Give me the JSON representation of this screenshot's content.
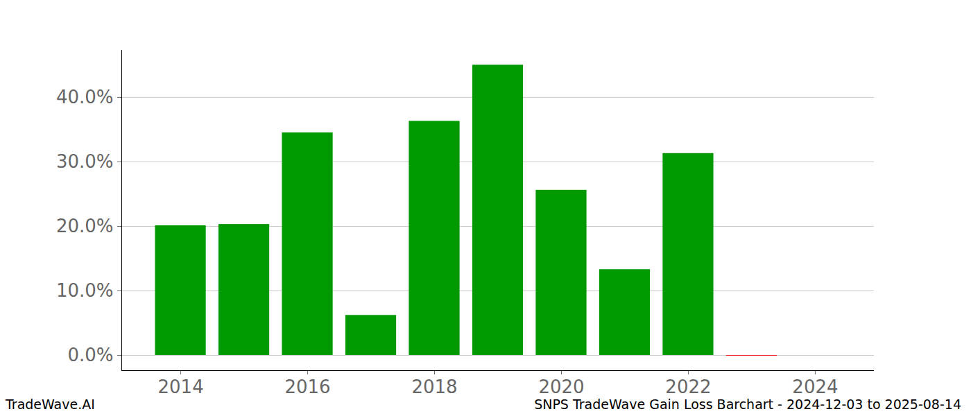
{
  "chart_data": {
    "type": "bar",
    "title": "SNPS TradeWave Gain Loss Barchart - 2024-12-03 to 2025-08-14",
    "annotations": [
      "TradeWave.AI"
    ],
    "x": [
      2014,
      2015,
      2016,
      2017,
      2018,
      2019,
      2020,
      2021,
      2022,
      2023
    ],
    "values": [
      20.1,
      20.3,
      34.5,
      6.2,
      36.3,
      45.0,
      25.6,
      13.3,
      31.3,
      -0.1
    ],
    "colors": [
      "#009900",
      "#009900",
      "#009900",
      "#009900",
      "#009900",
      "#009900",
      "#009900",
      "#009900",
      "#009900",
      "#ff0000"
    ],
    "xlim": [
      2013.07,
      2024.93
    ],
    "xticks": [
      2014,
      2016,
      2018,
      2020,
      2022,
      2024
    ],
    "ylim": [
      -2.37,
      47.3
    ],
    "yticks": [
      {
        "value": 0,
        "label": "0.0%"
      },
      {
        "value": 10,
        "label": "10.0%"
      },
      {
        "value": 20,
        "label": "20.0%"
      },
      {
        "value": 30,
        "label": "30.0%"
      },
      {
        "value": 40,
        "label": "40.0%"
      }
    ],
    "grid": true
  }
}
